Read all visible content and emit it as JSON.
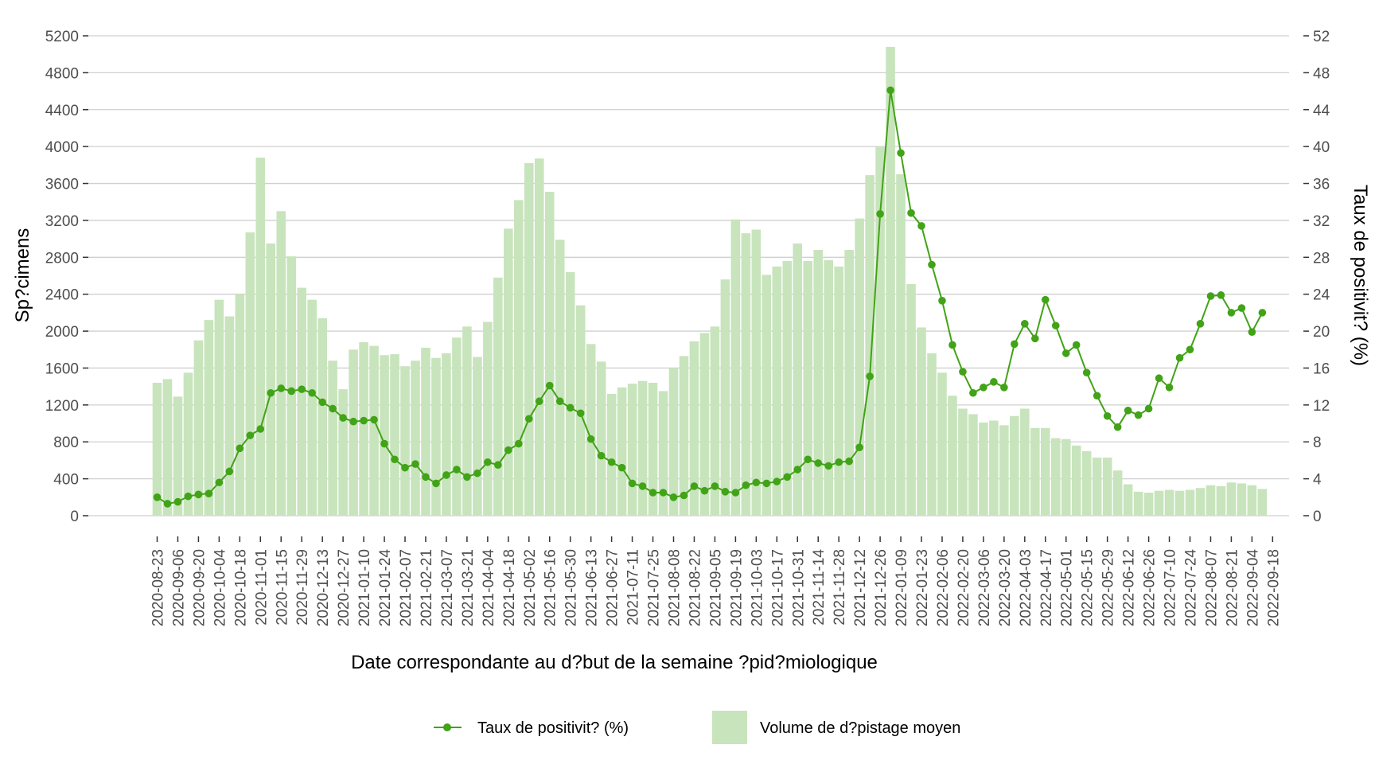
{
  "chart_data": {
    "type": "bar+line",
    "title": "",
    "xlabel": "Date correspondante au d?but de la semaine ?pid?miologique",
    "ylabel_left": "Sp?cimens",
    "ylabel_right": "Taux de positivit? (%)",
    "ylim_left": [
      0,
      5200
    ],
    "ylim_right": [
      0,
      52
    ],
    "yticks_left": [
      0,
      400,
      800,
      1200,
      1600,
      2000,
      2400,
      2800,
      3200,
      3600,
      4000,
      4400,
      4800,
      5200
    ],
    "yticks_right": [
      0,
      4,
      8,
      12,
      16,
      20,
      24,
      28,
      32,
      36,
      40,
      44,
      48,
      52
    ],
    "grid": true,
    "legend_position": "bottom",
    "colors": {
      "bar": "#c8e4bc",
      "line": "#41a317",
      "grid": "#d0d0d0",
      "tick_text": "#4d4d4d"
    },
    "xtick_labels": [
      "2020-08-23",
      "2020-09-06",
      "2020-09-20",
      "2020-10-04",
      "2020-10-18",
      "2020-11-01",
      "2020-11-15",
      "2020-11-29",
      "2020-12-13",
      "2020-12-27",
      "2021-01-10",
      "2021-01-24",
      "2021-02-07",
      "2021-02-21",
      "2021-03-07",
      "2021-03-21",
      "2021-04-04",
      "2021-04-18",
      "2021-05-02",
      "2021-05-16",
      "2021-05-30",
      "2021-06-13",
      "2021-06-27",
      "2021-07-11",
      "2021-07-25",
      "2021-08-08",
      "2021-08-22",
      "2021-09-05",
      "2021-09-19",
      "2021-10-03",
      "2021-10-17",
      "2021-10-31",
      "2021-11-14",
      "2021-11-28",
      "2021-12-12",
      "2021-12-26",
      "2022-01-09",
      "2022-01-23",
      "2022-02-06",
      "2022-02-20",
      "2022-03-06",
      "2022-03-20",
      "2022-04-03",
      "2022-04-17",
      "2022-05-01",
      "2022-05-15",
      "2022-05-29",
      "2022-06-12",
      "2022-06-26",
      "2022-07-10",
      "2022-07-24",
      "2022-08-07",
      "2022-08-21",
      "2022-09-04",
      "2022-09-18"
    ],
    "first_week": "2020-08-23",
    "series": [
      {
        "name": "Volume de d?pistage moyen",
        "type": "bar",
        "axis": "left",
        "values": [
          1440,
          1480,
          1290,
          1550,
          1900,
          2120,
          2340,
          2160,
          2400,
          3070,
          3880,
          2950,
          3300,
          2810,
          2470,
          2340,
          2140,
          1680,
          1370,
          1800,
          1880,
          1840,
          1740,
          1750,
          1620,
          1680,
          1820,
          1710,
          1760,
          1930,
          2050,
          1720,
          2100,
          2580,
          3110,
          3420,
          3820,
          3870,
          3510,
          2990,
          2640,
          2280,
          1860,
          1670,
          1320,
          1390,
          1430,
          1460,
          1440,
          1350,
          1600,
          1730,
          1890,
          1980,
          2050,
          2560,
          3210,
          3060,
          3100,
          2610,
          2700,
          2760,
          2950,
          2760,
          2880,
          2770,
          2700,
          2880,
          3220,
          3690,
          4000,
          5080,
          3700,
          2510,
          2040,
          1760,
          1550,
          1300,
          1160,
          1100,
          1010,
          1030,
          980,
          1080,
          1160,
          950,
          950,
          840,
          830,
          760,
          700,
          630,
          630,
          490,
          340,
          260,
          250,
          270,
          280,
          270,
          280,
          300,
          330,
          320,
          360,
          350,
          330,
          290
        ]
      },
      {
        "name": "Taux de positivit? (%)",
        "type": "line",
        "axis": "right",
        "values": [
          2.0,
          1.3,
          1.5,
          2.1,
          2.3,
          2.4,
          3.6,
          4.8,
          7.3,
          8.7,
          9.4,
          13.3,
          13.8,
          13.5,
          13.7,
          13.3,
          12.3,
          11.6,
          10.6,
          10.2,
          10.3,
          10.4,
          7.8,
          6.1,
          5.2,
          5.6,
          4.2,
          3.5,
          4.4,
          5.0,
          4.2,
          4.6,
          5.8,
          5.5,
          7.1,
          7.8,
          10.5,
          12.4,
          14.1,
          12.4,
          11.7,
          11.1,
          8.3,
          6.5,
          5.8,
          5.2,
          3.5,
          3.2,
          2.5,
          2.5,
          2.0,
          2.2,
          3.2,
          2.7,
          3.2,
          2.6,
          2.5,
          3.3,
          3.6,
          3.5,
          3.7,
          4.2,
          5.0,
          6.1,
          5.7,
          5.4,
          5.8,
          5.9,
          7.4,
          15.1,
          32.7,
          46.1,
          39.3,
          32.8,
          31.4,
          27.2,
          23.3,
          18.5,
          15.6,
          13.3,
          13.9,
          14.5,
          13.9,
          18.6,
          20.8,
          19.2,
          23.4,
          20.6,
          17.6,
          18.5,
          15.5,
          13.0,
          10.8,
          9.6,
          11.4,
          10.9,
          11.6,
          14.9,
          13.9,
          17.1,
          18.0,
          20.8,
          23.8,
          23.9,
          22.0,
          22.5,
          19.9,
          22.0
        ]
      }
    ]
  },
  "legend": {
    "line_label": "Taux de positivit? (%)",
    "bar_label": "Volume de d?pistage moyen"
  }
}
